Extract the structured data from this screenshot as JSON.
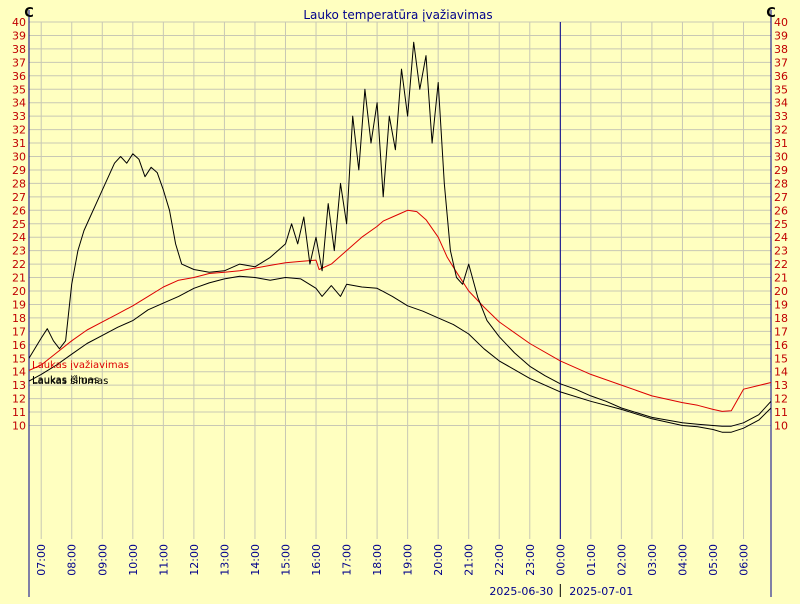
{
  "chart_data": {
    "type": "line",
    "title": "Lauko temperatūra įvažiavimas",
    "unit_label": "C",
    "ylim": [
      9,
      40
    ],
    "y_ticks": [
      10,
      11,
      12,
      13,
      14,
      15,
      16,
      17,
      18,
      19,
      20,
      21,
      22,
      23,
      24,
      25,
      26,
      27,
      28,
      29,
      30,
      31,
      32,
      33,
      34,
      35,
      36,
      37,
      38,
      39,
      40
    ],
    "x_unit": "hours since 2025-06-30 00:00",
    "x_range": [
      6.6,
      30.9
    ],
    "x_ticks": [
      {
        "x": 7,
        "label": "07:00"
      },
      {
        "x": 8,
        "label": "08:00"
      },
      {
        "x": 9,
        "label": "09:00"
      },
      {
        "x": 10,
        "label": "10:00"
      },
      {
        "x": 11,
        "label": "11:00"
      },
      {
        "x": 12,
        "label": "12:00"
      },
      {
        "x": 13,
        "label": "13:00"
      },
      {
        "x": 14,
        "label": "14:00"
      },
      {
        "x": 15,
        "label": "15:00"
      },
      {
        "x": 16,
        "label": "16:00"
      },
      {
        "x": 17,
        "label": "17:00"
      },
      {
        "x": 18,
        "label": "18:00"
      },
      {
        "x": 19,
        "label": "19:00"
      },
      {
        "x": 20,
        "label": "20:00"
      },
      {
        "x": 21,
        "label": "21:00"
      },
      {
        "x": 22,
        "label": "22:00"
      },
      {
        "x": 23,
        "label": "23:00"
      },
      {
        "x": 24,
        "label": "00:00"
      },
      {
        "x": 25,
        "label": "01:00"
      },
      {
        "x": 26,
        "label": "02:00"
      },
      {
        "x": 27,
        "label": "03:00"
      },
      {
        "x": 28,
        "label": "04:00"
      },
      {
        "x": 29,
        "label": "05:00"
      },
      {
        "x": 30,
        "label": "06:00"
      }
    ],
    "day_divider_x": 24,
    "date_labels": {
      "before": "2025-06-30",
      "after": "2025-07-01"
    },
    "series": [
      {
        "name": "Laukas įvažiavimas",
        "color": "#dd0000",
        "x": [
          6.6,
          7,
          7.5,
          8,
          8.5,
          9,
          9.5,
          10,
          10.5,
          11,
          11.5,
          12,
          12.5,
          13,
          13.5,
          14,
          14.5,
          15,
          15.5,
          16,
          16.1,
          16.5,
          17,
          17.5,
          18,
          18.2,
          18.5,
          18.8,
          19,
          19.3,
          19.6,
          20,
          20.3,
          20.6,
          21,
          21.5,
          22,
          23,
          24,
          25,
          26,
          27,
          28,
          28.5,
          29,
          29.3,
          29.6,
          30,
          30.9
        ],
        "values": [
          14.1,
          14.5,
          15.4,
          16.3,
          17.1,
          17.7,
          18.3,
          18.9,
          19.6,
          20.3,
          20.8,
          21,
          21.3,
          21.4,
          21.5,
          21.7,
          21.9,
          22.1,
          22.2,
          22.3,
          21.6,
          22,
          23,
          24,
          24.8,
          25.2,
          25.5,
          25.8,
          26,
          25.9,
          25.3,
          24,
          22.5,
          21.4,
          20,
          18.8,
          17.7,
          16.1,
          14.8,
          13.8,
          13,
          12.2,
          11.7,
          11.5,
          11.2,
          11.05,
          11.1,
          12.7,
          13.2
        ]
      },
      {
        "name": "Laukas šilumas",
        "color": "#000000",
        "x": [
          6.6,
          7,
          7.2,
          7.4,
          7.6,
          7.8,
          8,
          8.2,
          8.4,
          8.6,
          8.8,
          9,
          9.2,
          9.4,
          9.6,
          9.8,
          10,
          10.2,
          10.4,
          10.6,
          10.8,
          11,
          11.2,
          11.4,
          11.6,
          12,
          12.5,
          13,
          13.5,
          14,
          14.5,
          15,
          15.2,
          15.4,
          15.6,
          15.8,
          16,
          16.2,
          16.4,
          16.6,
          16.8,
          17,
          17.2,
          17.4,
          17.6,
          17.8,
          18,
          18.2,
          18.4,
          18.6,
          18.8,
          19,
          19.2,
          19.4,
          19.6,
          19.8,
          20,
          20.2,
          20.4,
          20.6,
          20.8,
          21,
          21.3,
          21.6,
          22,
          22.5,
          23,
          23.5,
          24,
          24.5,
          25,
          25.5,
          26,
          27,
          28,
          28.5,
          29,
          29.3,
          29.6,
          30,
          30.5,
          30.9
        ],
        "values": [
          15,
          16.5,
          17.2,
          16.3,
          15.7,
          16.3,
          20.5,
          23,
          24.5,
          25.5,
          26.5,
          27.5,
          28.5,
          29.5,
          30,
          29.5,
          30.2,
          29.8,
          28.5,
          29.2,
          28.8,
          27.5,
          26,
          23.5,
          22,
          21.6,
          21.4,
          21.5,
          22,
          21.8,
          22.5,
          23.5,
          25,
          23.5,
          25.5,
          22,
          24,
          21.5,
          26.5,
          23,
          28,
          25,
          33,
          29,
          35,
          31,
          34,
          27,
          33,
          30.5,
          36.5,
          33,
          38.5,
          35,
          37.5,
          31,
          35.5,
          28,
          23,
          21,
          20.5,
          22,
          19.5,
          17.8,
          16.6,
          15.4,
          14.4,
          13.7,
          13.1,
          12.7,
          12.2,
          11.8,
          11.3,
          10.6,
          10.2,
          10.1,
          10,
          9.95,
          9.95,
          10.2,
          10.8,
          11.8
        ]
      },
      {
        "name": "Laukas išmas",
        "color": "#000000",
        "x": [
          6.6,
          7,
          7.5,
          8,
          8.5,
          9,
          9.5,
          10,
          10.5,
          11,
          11.5,
          12,
          12.5,
          13,
          13.5,
          14,
          14.5,
          15,
          15.5,
          16,
          16.2,
          16.5,
          16.8,
          17,
          17.5,
          18,
          18.5,
          19,
          19.5,
          20,
          20.5,
          21,
          21.5,
          22,
          23,
          24,
          25,
          26,
          27,
          28,
          28.5,
          29,
          29.3,
          29.6,
          30,
          30.5,
          30.9
        ],
        "values": [
          13.3,
          13.8,
          14.5,
          15.3,
          16.1,
          16.7,
          17.3,
          17.8,
          18.6,
          19.1,
          19.6,
          20.2,
          20.6,
          20.9,
          21.1,
          21,
          20.8,
          21,
          20.9,
          20.2,
          19.6,
          20.4,
          19.6,
          20.5,
          20.3,
          20.2,
          19.6,
          18.9,
          18.5,
          18,
          17.5,
          16.8,
          15.7,
          14.8,
          13.5,
          12.5,
          11.8,
          11.2,
          10.5,
          10,
          9.9,
          9.7,
          9.5,
          9.5,
          9.8,
          10.4,
          11.3
        ]
      }
    ]
  }
}
